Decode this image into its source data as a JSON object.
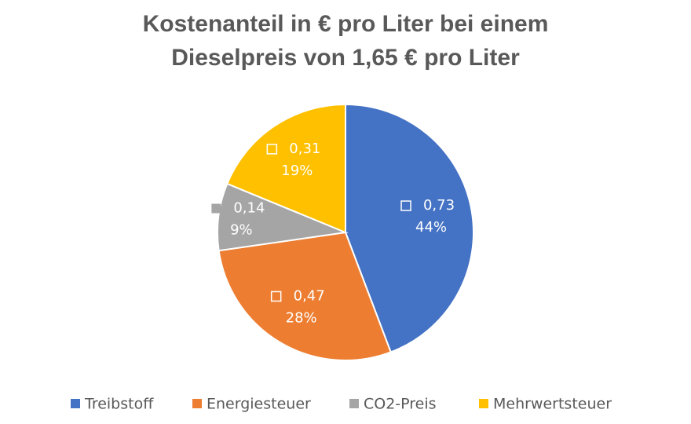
{
  "chart_data": {
    "type": "pie",
    "title": [
      "Kostenanteil in € pro Liter bei einem",
      "Dieselpreis von 1,65 € pro Liter"
    ],
    "categories": [
      "Treibstoff",
      "Energiesteuer",
      "CO2-Preis",
      "Mehrwertsteuer"
    ],
    "values": [
      0.73,
      0.47,
      0.14,
      0.31
    ],
    "value_labels": [
      "0,73",
      "0,47",
      "0,14",
      "0,31"
    ],
    "percent_values": [
      44,
      28,
      9,
      19
    ],
    "percent_labels": [
      "44%",
      "28%",
      "9%",
      "19%"
    ],
    "colors": [
      "#4472c4",
      "#ed7d31",
      "#a5a5a5",
      "#ffc000"
    ],
    "legend": "bottom"
  }
}
